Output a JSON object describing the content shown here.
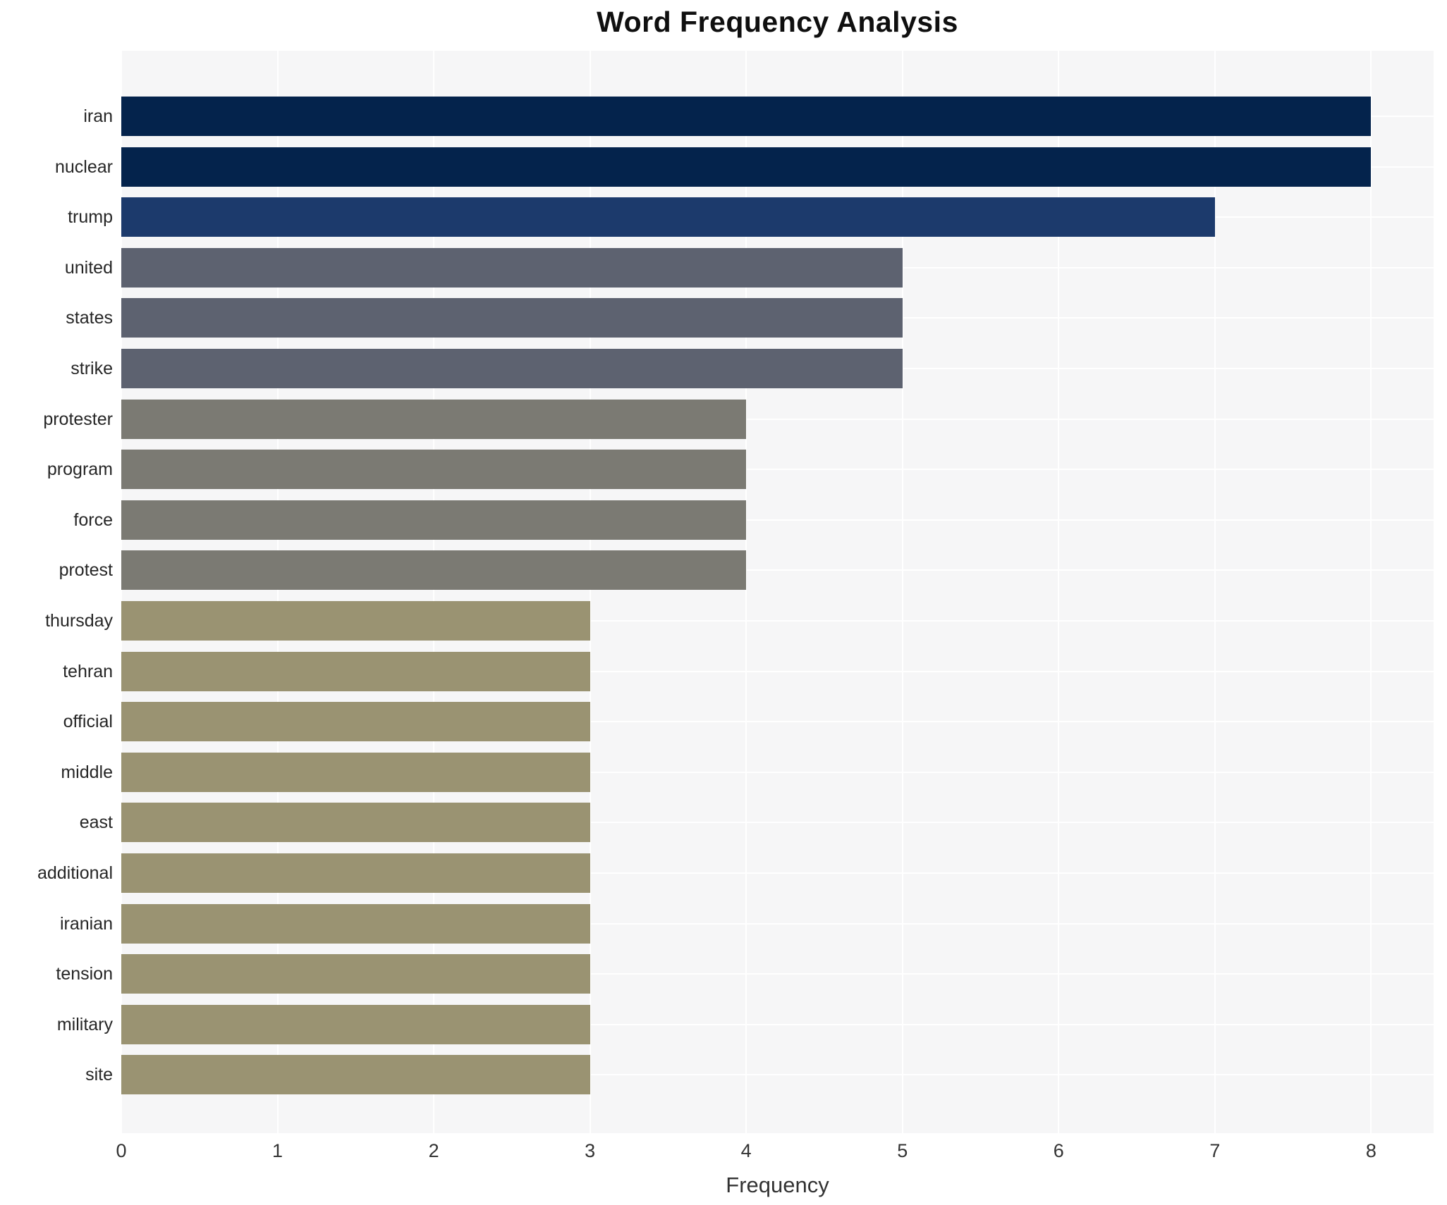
{
  "title": "Word Frequency Analysis",
  "axes": {
    "xlabel": "Frequency",
    "x_ticks": [
      "0",
      "1",
      "2",
      "3",
      "4",
      "5",
      "6",
      "7",
      "8"
    ]
  },
  "colors": {
    "plot_background": "#f6f6f7",
    "gridline": "#ffffff",
    "title_text": "#0f0f0f",
    "tick_text": "#333333",
    "category_text": "#262626"
  },
  "chart_data": {
    "type": "bar",
    "orientation": "horizontal",
    "title": "Word Frequency Analysis",
    "xlabel": "Frequency",
    "ylabel": "",
    "xlim": [
      0,
      8.4
    ],
    "x_tick_values": [
      0,
      1,
      2,
      3,
      4,
      5,
      6,
      7,
      8
    ],
    "grid": true,
    "legend": false,
    "categories": [
      "iran",
      "nuclear",
      "trump",
      "united",
      "states",
      "strike",
      "protester",
      "program",
      "force",
      "protest",
      "thursday",
      "tehran",
      "official",
      "middle",
      "east",
      "additional",
      "iranian",
      "tension",
      "military",
      "site"
    ],
    "values": [
      8,
      8,
      7,
      5,
      5,
      5,
      4,
      4,
      4,
      4,
      3,
      3,
      3,
      3,
      3,
      3,
      3,
      3,
      3,
      3
    ],
    "bar_colors": [
      "#04234c",
      "#04234c",
      "#1c3a6c",
      "#5d6270",
      "#5d6270",
      "#5d6270",
      "#7b7a73",
      "#7b7a73",
      "#7b7a73",
      "#7b7a73",
      "#9a9372",
      "#9a9372",
      "#9a9372",
      "#9a9372",
      "#9a9372",
      "#9a9372",
      "#9a9372",
      "#9a9372",
      "#9a9372",
      "#9a9372"
    ]
  }
}
